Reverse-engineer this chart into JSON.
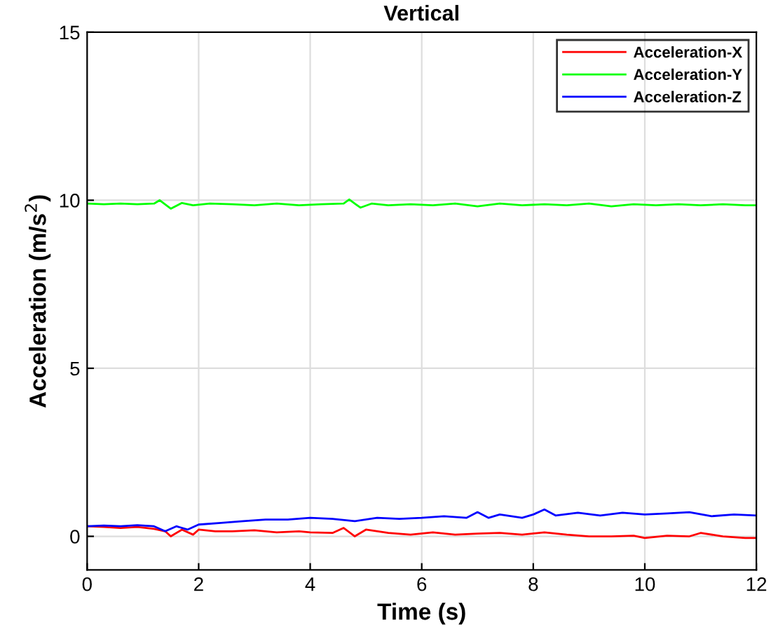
{
  "chart_data": {
    "type": "line",
    "title": "Vertical",
    "xlabel": "Time (s)",
    "ylabel": "Acceleration (m/s$^{2}$)",
    "xlim": [
      0,
      12
    ],
    "ylim": [
      -1,
      15
    ],
    "xticks": [
      0,
      2,
      4,
      6,
      8,
      10,
      12
    ],
    "yticks": [
      0,
      5,
      10,
      15
    ],
    "grid": true,
    "legend": "top right",
    "series": [
      {
        "name": "Acceleration-X",
        "color": "#ff0000",
        "x": [
          0,
          0.3,
          0.6,
          0.9,
          1.2,
          1.4,
          1.5,
          1.7,
          1.9,
          2.0,
          2.3,
          2.6,
          3.0,
          3.4,
          3.8,
          4.0,
          4.4,
          4.6,
          4.8,
          5.0,
          5.4,
          5.8,
          6.2,
          6.6,
          7.0,
          7.4,
          7.8,
          8.2,
          8.6,
          9.0,
          9.4,
          9.8,
          10.0,
          10.4,
          10.8,
          11.0,
          11.4,
          11.8,
          12.0
        ],
        "values": [
          0.3,
          0.28,
          0.25,
          0.28,
          0.22,
          0.15,
          0.0,
          0.2,
          0.05,
          0.2,
          0.15,
          0.15,
          0.18,
          0.12,
          0.15,
          0.12,
          0.1,
          0.25,
          0.0,
          0.2,
          0.1,
          0.05,
          0.12,
          0.05,
          0.08,
          0.1,
          0.05,
          0.12,
          0.05,
          0.0,
          0.0,
          0.02,
          -0.05,
          0.02,
          0.0,
          0.1,
          0.0,
          -0.05,
          -0.05
        ]
      },
      {
        "name": "Acceleration-Y",
        "color": "#00ff00",
        "x": [
          0,
          0.3,
          0.6,
          0.9,
          1.2,
          1.3,
          1.5,
          1.7,
          1.9,
          2.2,
          2.6,
          3.0,
          3.4,
          3.8,
          4.2,
          4.6,
          4.7,
          4.9,
          5.1,
          5.4,
          5.8,
          6.2,
          6.6,
          7.0,
          7.4,
          7.8,
          8.2,
          8.6,
          9.0,
          9.4,
          9.8,
          10.2,
          10.6,
          11.0,
          11.4,
          11.8,
          12.0
        ],
        "values": [
          9.9,
          9.88,
          9.9,
          9.88,
          9.9,
          10.0,
          9.75,
          9.92,
          9.85,
          9.9,
          9.88,
          9.85,
          9.9,
          9.85,
          9.88,
          9.9,
          10.02,
          9.78,
          9.9,
          9.85,
          9.88,
          9.85,
          9.9,
          9.82,
          9.9,
          9.85,
          9.88,
          9.85,
          9.9,
          9.82,
          9.88,
          9.85,
          9.88,
          9.85,
          9.88,
          9.85,
          9.85
        ]
      },
      {
        "name": "Acceleration-Z",
        "color": "#0000ff",
        "x": [
          0,
          0.3,
          0.6,
          0.9,
          1.2,
          1.4,
          1.6,
          1.8,
          2.0,
          2.4,
          2.8,
          3.2,
          3.6,
          4.0,
          4.4,
          4.8,
          5.2,
          5.6,
          6.0,
          6.4,
          6.8,
          7.0,
          7.2,
          7.4,
          7.8,
          8.0,
          8.2,
          8.4,
          8.8,
          9.2,
          9.6,
          10.0,
          10.4,
          10.8,
          11.2,
          11.6,
          12.0
        ],
        "values": [
          0.3,
          0.32,
          0.3,
          0.33,
          0.3,
          0.15,
          0.3,
          0.2,
          0.35,
          0.4,
          0.45,
          0.5,
          0.5,
          0.55,
          0.52,
          0.45,
          0.55,
          0.52,
          0.55,
          0.6,
          0.55,
          0.72,
          0.55,
          0.65,
          0.55,
          0.65,
          0.8,
          0.62,
          0.7,
          0.62,
          0.7,
          0.65,
          0.68,
          0.72,
          0.6,
          0.65,
          0.62
        ]
      }
    ]
  }
}
